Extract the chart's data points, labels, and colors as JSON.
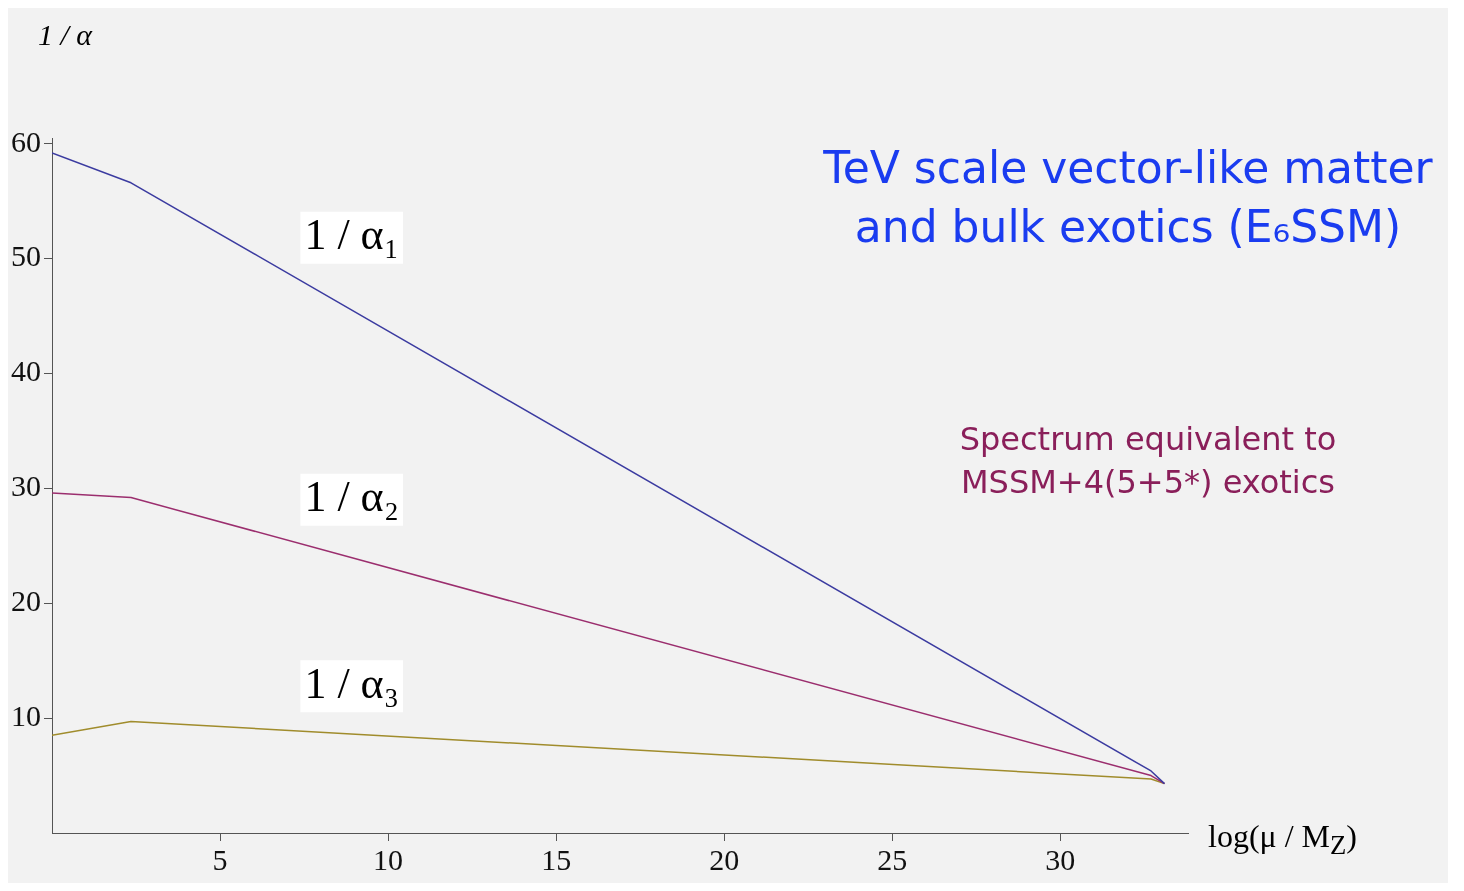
{
  "chart_data": {
    "type": "line",
    "xlabel": "log(μ / M$_{Z}$)",
    "ylabel": "1 / α",
    "xlim": [
      0,
      33.8
    ],
    "xticks": [
      5,
      10,
      15,
      20,
      25,
      30
    ],
    "ylim": [
      0,
      60.5
    ],
    "yticks": [
      10,
      20,
      30,
      40,
      50,
      60
    ],
    "x": [
      0,
      2.35,
      32.7,
      33.1
    ],
    "series": [
      {
        "name": "1 / α₁",
        "color": "#3b3ba0",
        "values": [
          59.2,
          56.6,
          5.4,
          4.3
        ]
      },
      {
        "name": "1 / α₂",
        "color": "#9b2e6e",
        "values": [
          29.6,
          29.2,
          5.0,
          4.3
        ]
      },
      {
        "name": "1 / α₃",
        "color": "#a08c2c",
        "values": [
          8.5,
          9.7,
          4.7,
          4.3
        ]
      }
    ],
    "marker": "none",
    "line_style": "solid",
    "legend": false,
    "annotations": [
      "TeV scale vector-like matter and bulk exotics (E₆SSM)",
      "Spectrum equivalent to MSSM+4(5+5*) exotics"
    ]
  }
}
